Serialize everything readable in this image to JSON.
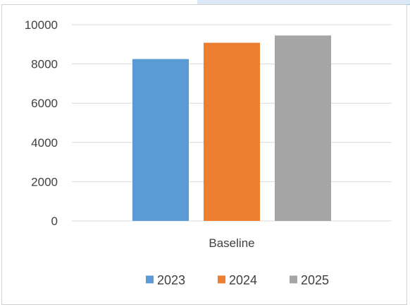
{
  "chart_data": {
    "type": "bar",
    "categories": [
      "Baseline"
    ],
    "series": [
      {
        "name": "2023",
        "values": [
          8250
        ],
        "color": "#5b9bd5"
      },
      {
        "name": "2024",
        "values": [
          9080
        ],
        "color": "#ed7d31"
      },
      {
        "name": "2025",
        "values": [
          9450
        ],
        "color": "#a5a5a5"
      }
    ],
    "title": "",
    "xlabel": "",
    "ylabel": "",
    "ylim": [
      0,
      10000
    ],
    "yticks": [
      0,
      2000,
      4000,
      6000,
      8000,
      10000
    ],
    "yticks_labels": [
      "0",
      "2000",
      "4000",
      "6000",
      "8000",
      "10000"
    ],
    "grid": true,
    "legend": "bottom",
    "gridline_color": "#d9d9d9"
  }
}
